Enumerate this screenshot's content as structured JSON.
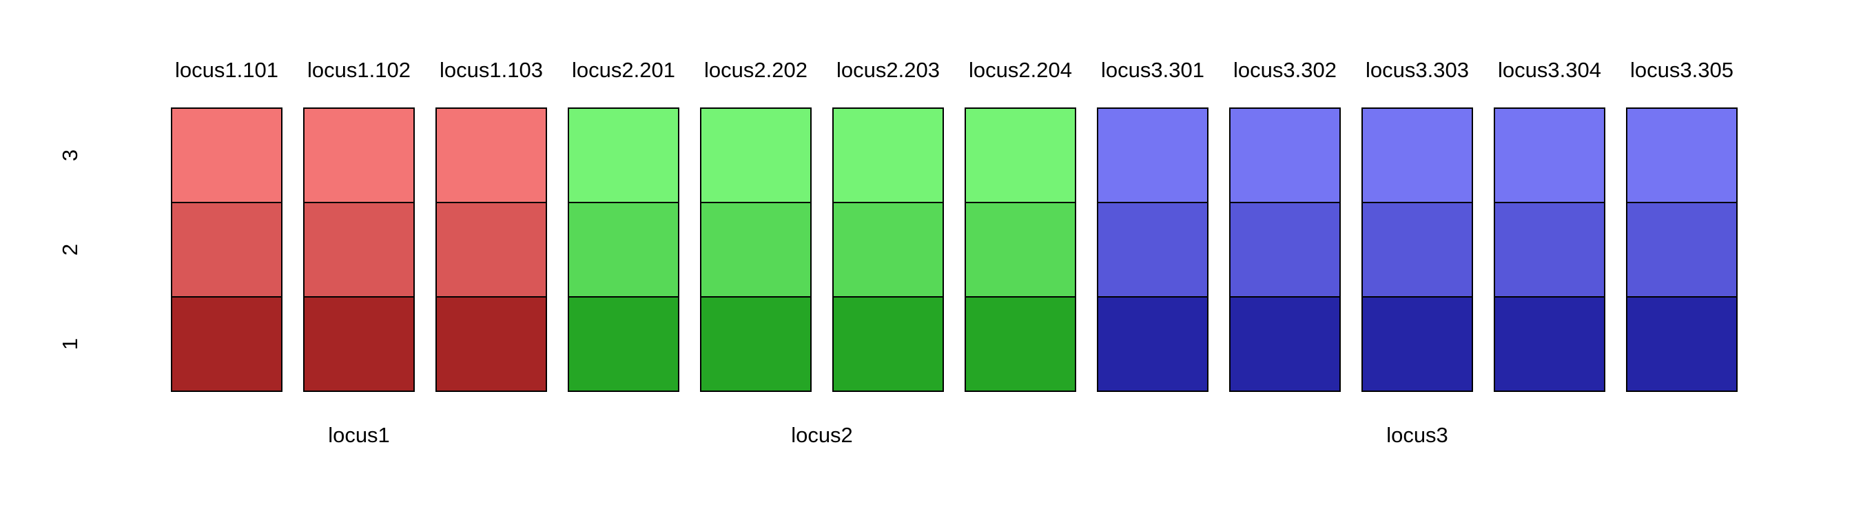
{
  "chart_data": {
    "type": "heatmap",
    "title": "",
    "xlabel": "",
    "ylabel": "",
    "columns": [
      {
        "label": "locus1.101",
        "group": "locus1"
      },
      {
        "label": "locus1.102",
        "group": "locus1"
      },
      {
        "label": "locus1.103",
        "group": "locus1"
      },
      {
        "label": "locus2.201",
        "group": "locus2"
      },
      {
        "label": "locus2.202",
        "group": "locus2"
      },
      {
        "label": "locus2.203",
        "group": "locus2"
      },
      {
        "label": "locus2.204",
        "group": "locus2"
      },
      {
        "label": "locus3.301",
        "group": "locus3"
      },
      {
        "label": "locus3.302",
        "group": "locus3"
      },
      {
        "label": "locus3.303",
        "group": "locus3"
      },
      {
        "label": "locus3.304",
        "group": "locus3"
      },
      {
        "label": "locus3.305",
        "group": "locus3"
      }
    ],
    "groups": [
      {
        "name": "locus1",
        "colors": {
          "1": "#a62525",
          "2": "#d95757",
          "3": "#f37575"
        }
      },
      {
        "name": "locus2",
        "colors": {
          "1": "#25a625",
          "2": "#57d957",
          "3": "#75f375"
        }
      },
      {
        "name": "locus3",
        "colors": {
          "1": "#2525a6",
          "2": "#5757d9",
          "3": "#7575f3"
        }
      }
    ],
    "rows": [
      "1",
      "2",
      "3"
    ],
    "grid": false,
    "legend": "none"
  }
}
